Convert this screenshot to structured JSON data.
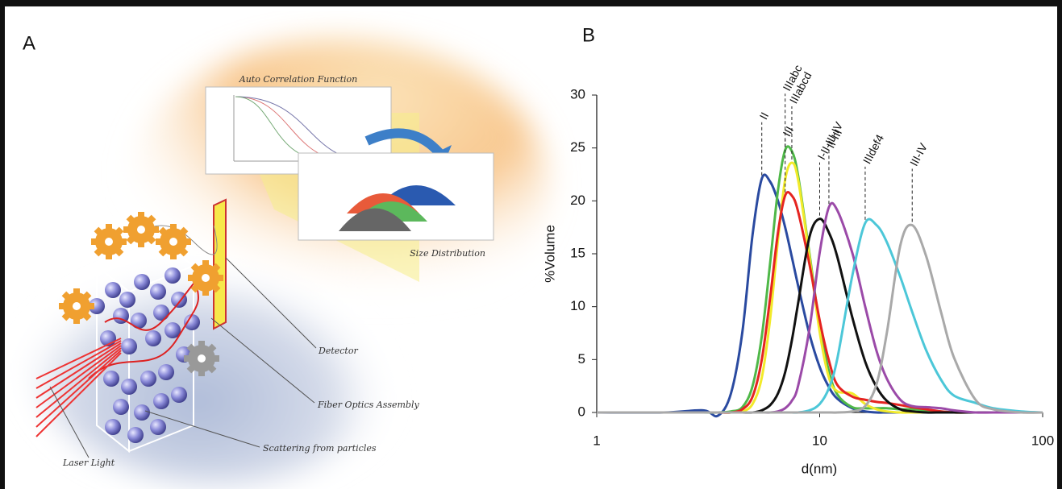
{
  "panels": {
    "a": "A",
    "b": "B"
  },
  "illustration": {
    "acf_title": "Auto Correlation Function",
    "size_title": "Size Distribution",
    "detector": "Detector",
    "fiber": "Fiber Optics Assembly",
    "scattering": "Scattering from particles",
    "laser": "Laser Light"
  },
  "chart_data": {
    "type": "line",
    "x_label": "d(nm)",
    "y_label": "%Volume",
    "x_scale": "log",
    "xlim": [
      1,
      100
    ],
    "xticks": [
      1,
      10,
      100
    ],
    "ylim": [
      0,
      30
    ],
    "yticks": [
      0,
      5,
      10,
      15,
      20,
      25,
      30
    ],
    "peak_labels": true,
    "x": [
      1,
      2,
      3,
      3.5,
      4,
      4.5,
      5,
      5.5,
      6,
      6.5,
      7,
      7.5,
      8,
      9,
      10,
      11,
      12,
      14,
      16,
      18,
      20,
      23,
      26,
      30,
      35,
      40,
      50,
      60,
      80,
      100
    ],
    "series": [
      {
        "name": "II",
        "color": "#2a4aa0",
        "values": [
          0,
          0,
          0.2,
          -0.3,
          1.8,
          7.6,
          16.8,
          22.1,
          21.8,
          20.0,
          17.5,
          14.7,
          12.0,
          7.4,
          4.3,
          2.4,
          1.3,
          0.4,
          0.1,
          0,
          0,
          0,
          0,
          0,
          0,
          0,
          0,
          0,
          0,
          0
        ]
      },
      {
        "name": "IIIabc",
        "color": "#4fb848",
        "values": [
          0,
          0,
          0,
          0,
          0.1,
          0.5,
          2.5,
          7.2,
          14.2,
          21.0,
          24.8,
          24.7,
          22.4,
          15.0,
          8.2,
          3.9,
          1.7,
          0.5,
          0.4,
          0.4,
          0.4,
          0.3,
          0.3,
          0.2,
          0.1,
          0,
          0,
          0,
          0,
          0
        ]
      },
      {
        "name": "IIIabcd",
        "color": "#f2ea2a",
        "values": [
          0,
          0,
          0,
          0,
          0,
          0.1,
          0.8,
          3.3,
          8.9,
          16.3,
          22.0,
          23.6,
          22.0,
          14.7,
          7.6,
          3.3,
          2.0,
          1.8,
          0.8,
          0.3,
          0.1,
          0,
          0,
          0,
          0,
          0,
          0,
          0,
          0,
          0
        ]
      },
      {
        "name": "III",
        "color": "#e52421",
        "values": [
          0,
          0,
          0,
          0,
          0,
          0.3,
          1.5,
          5.0,
          10.9,
          17.0,
          20.5,
          20.5,
          19.0,
          14.0,
          8.7,
          4.9,
          2.6,
          1.5,
          1.2,
          1.0,
          0.9,
          0.7,
          0.5,
          0.3,
          0.1,
          0,
          0,
          0,
          0,
          0
        ]
      },
      {
        "name": "I-II-III-IV",
        "color": "#111111",
        "values": [
          0,
          0,
          0,
          0,
          0,
          0,
          0,
          0.2,
          0.7,
          1.8,
          3.8,
          6.8,
          10.3,
          16.6,
          18.3,
          17.0,
          14.7,
          9.0,
          4.8,
          2.4,
          1.1,
          0.3,
          0.1,
          0,
          0,
          0,
          0,
          0,
          0,
          0
        ]
      },
      {
        "name": "II-III",
        "color": "#9b4aa8",
        "values": [
          0,
          0,
          0,
          0,
          0,
          0,
          0,
          0,
          0,
          0.1,
          0.4,
          1.1,
          2.5,
          7.9,
          15.1,
          19.4,
          19.1,
          15.1,
          10.0,
          5.8,
          3.2,
          1.2,
          0.6,
          0.5,
          0.4,
          0.2,
          0,
          0,
          0,
          0
        ]
      },
      {
        "name": "IIIdef4",
        "color": "#4cc7d8",
        "values": [
          0,
          0,
          0,
          0,
          0,
          0,
          0,
          0,
          0,
          0,
          0,
          0,
          0,
          0.2,
          0.8,
          2.3,
          5.1,
          12.9,
          17.9,
          17.7,
          16.1,
          12.8,
          9.5,
          5.9,
          3.1,
          1.6,
          0.9,
          0.4,
          0.1,
          0
        ]
      },
      {
        "name": "III-IV",
        "color": "#a9a9a9",
        "values": [
          0,
          0,
          0,
          0,
          0,
          0,
          0,
          0,
          0,
          0,
          0,
          0,
          0,
          0,
          0,
          0,
          0,
          0.1,
          0.6,
          2.7,
          7.5,
          15.8,
          17.7,
          14.8,
          9.5,
          5.2,
          1.2,
          0.3,
          0,
          0
        ]
      }
    ]
  }
}
